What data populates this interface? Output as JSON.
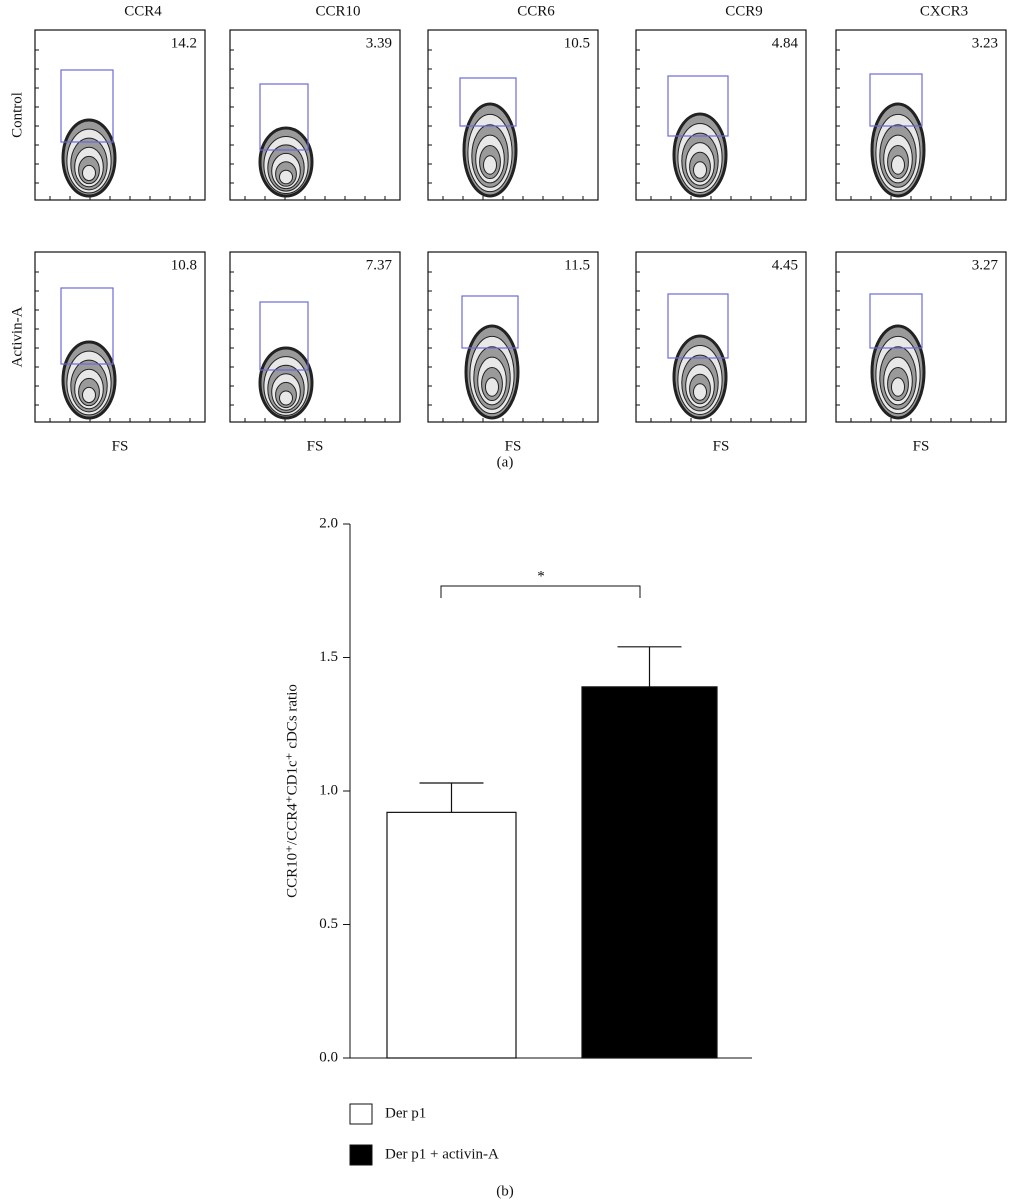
{
  "chart_data": [
    {
      "type": "contour",
      "panel": "(a)",
      "columns": [
        "CCR4",
        "CCR10",
        "CCR6",
        "CCR9",
        "CXCR3"
      ],
      "rows": [
        "Control",
        "Activin-A"
      ],
      "values": [
        [
          14.2,
          3.39,
          10.5,
          4.84,
          3.23
        ],
        [
          10.8,
          7.37,
          11.5,
          4.45,
          3.27
        ]
      ],
      "xlabel": "FS"
    },
    {
      "type": "bar",
      "panel": "(b)",
      "ylabel": "CCR10⁺/CCR4⁺CD1c⁺ cDCs ratio",
      "categories": [
        "Der p1",
        "Der p1 + activin-A"
      ],
      "values": [
        0.92,
        1.39
      ],
      "errors": [
        0.11,
        0.15
      ],
      "colors": [
        "#ffffff",
        "#000000"
      ],
      "ylim": [
        0,
        2
      ],
      "yticks": [
        {
          "value": 0,
          "label": "0.0"
        },
        0.5,
        {
          "value": 1,
          "label": "1.0"
        },
        1.5,
        {
          "value": 2,
          "label": "2.0"
        }
      ],
      "annotation": "*"
    }
  ]
}
